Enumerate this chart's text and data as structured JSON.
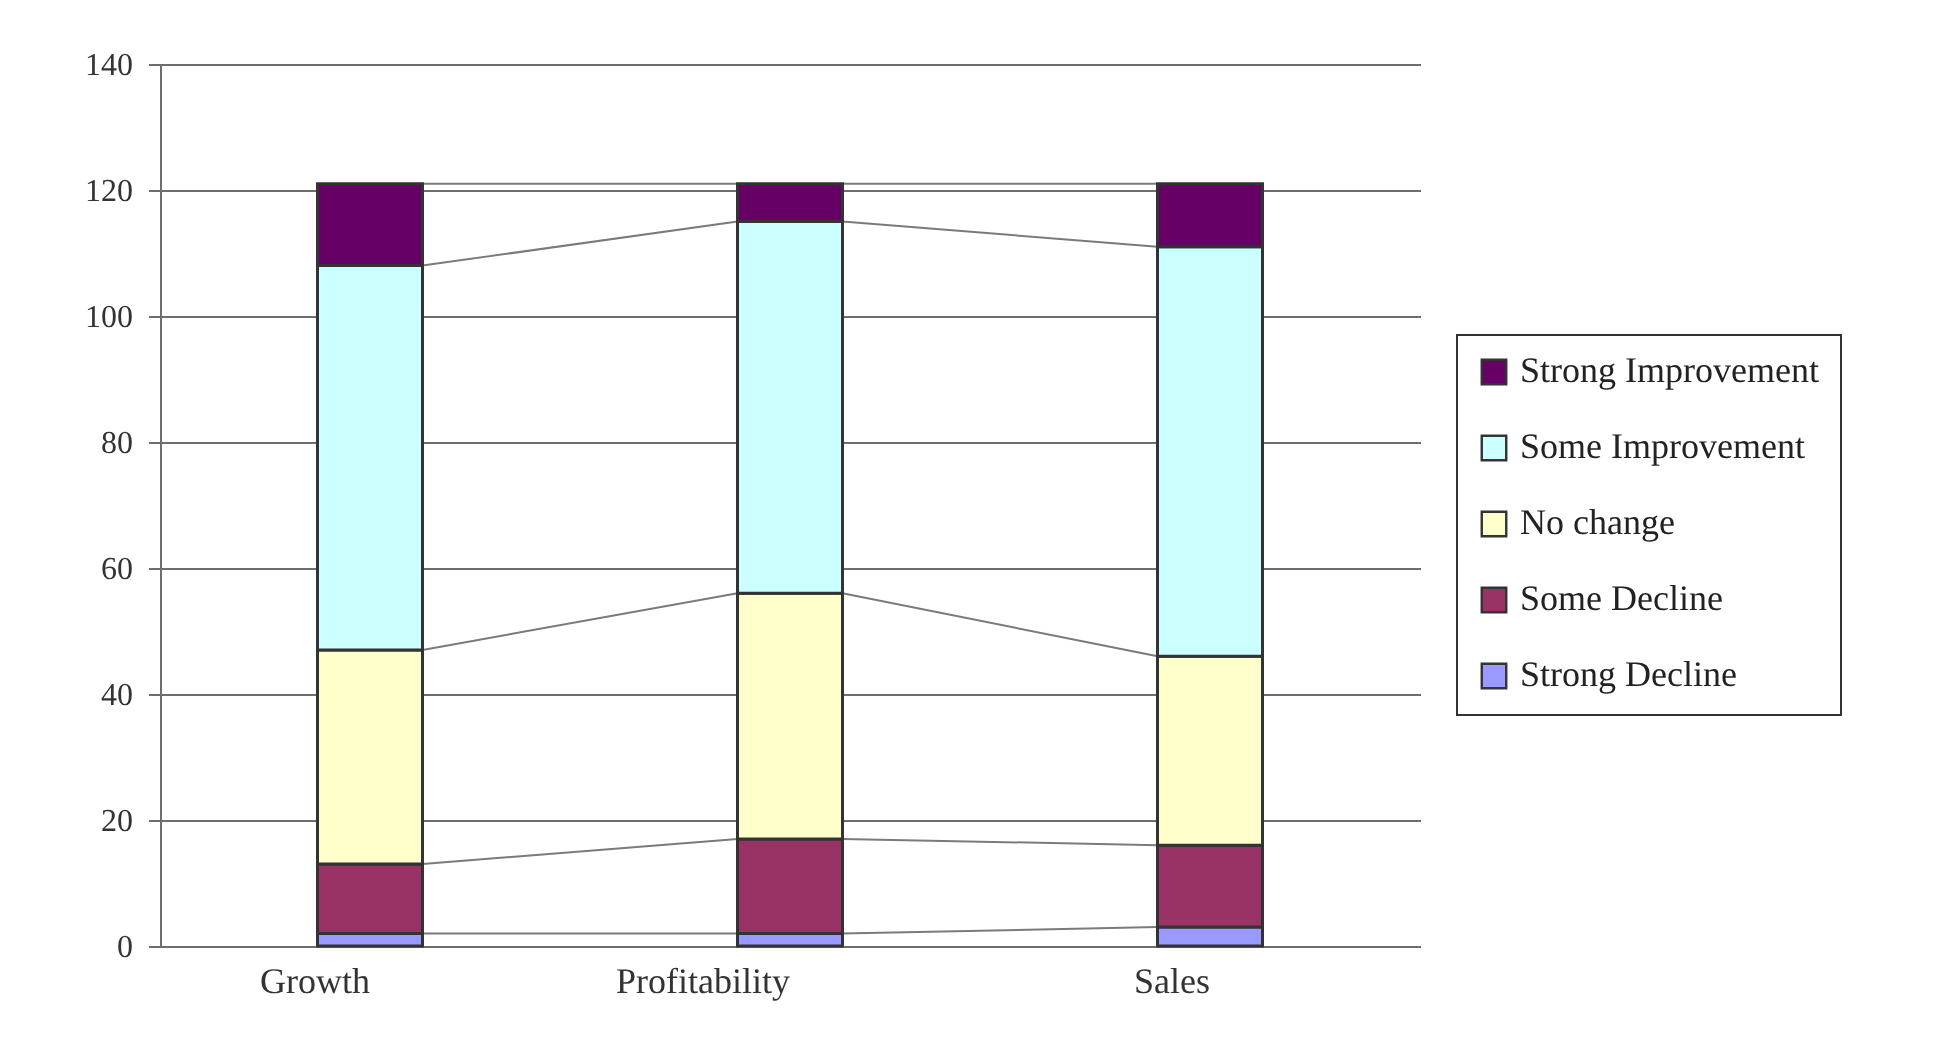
{
  "chart_data": {
    "type": "bar",
    "stacked": true,
    "categories": [
      "Growth",
      "Profitability",
      "Sales"
    ],
    "series": [
      {
        "name": "Strong Decline",
        "color": "#9999ff",
        "values": [
          2,
          2,
          3
        ]
      },
      {
        "name": "Some Decline",
        "color": "#993366",
        "values": [
          11,
          15,
          13
        ]
      },
      {
        "name": "No change",
        "color": "#ffffcc",
        "values": [
          34,
          39,
          30
        ]
      },
      {
        "name": "Some Improvement",
        "color": "#ccffff",
        "values": [
          61,
          59,
          65
        ]
      },
      {
        "name": "Strong Improvement",
        "color": "#660066",
        "values": [
          13,
          6,
          10
        ]
      }
    ],
    "ylim": [
      0,
      140
    ],
    "yticks": [
      0,
      20,
      40,
      60,
      80,
      100,
      120,
      140
    ],
    "grid": "y",
    "legend": "right"
  }
}
